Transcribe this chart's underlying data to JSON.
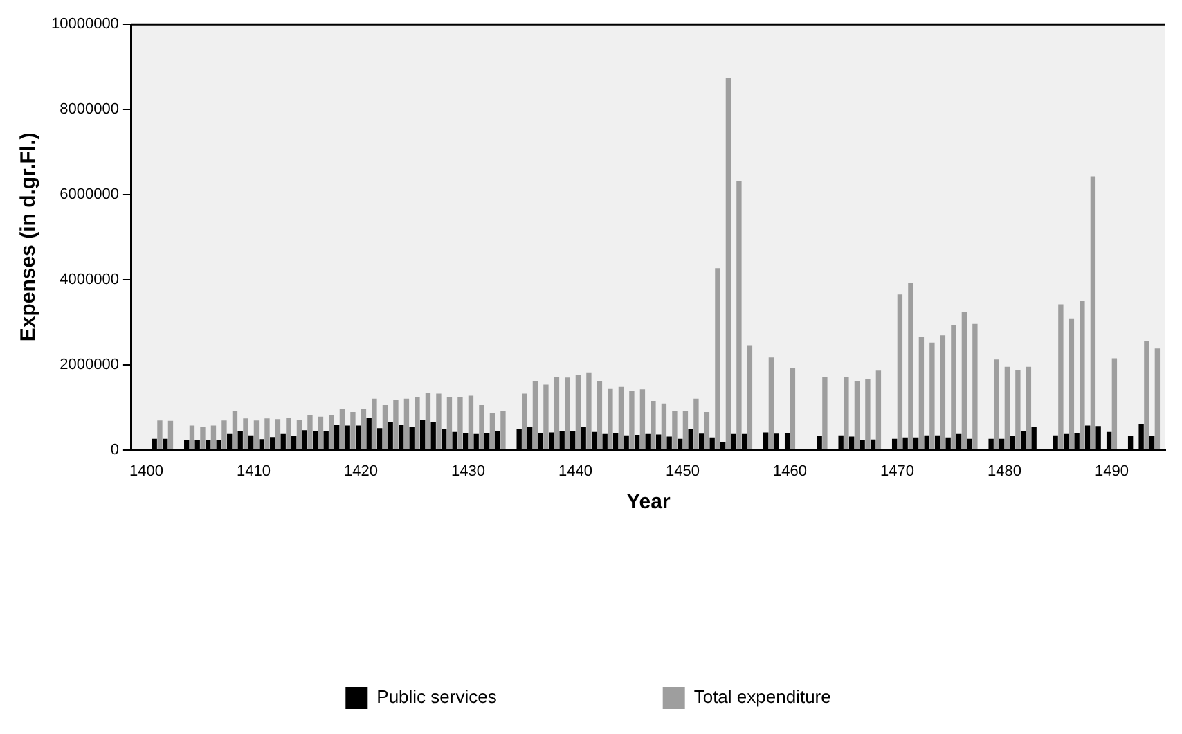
{
  "chart_data": {
    "type": "bar",
    "xlabel": "Year",
    "ylabel": "Expenses (in d.gr.Fl.)",
    "x": [
      1401,
      1402,
      1403,
      1404,
      1405,
      1406,
      1407,
      1408,
      1409,
      1410,
      1411,
      1412,
      1413,
      1414,
      1415,
      1416,
      1417,
      1418,
      1419,
      1420,
      1421,
      1422,
      1423,
      1424,
      1425,
      1426,
      1427,
      1428,
      1429,
      1430,
      1431,
      1432,
      1433,
      1434,
      1435,
      1436,
      1437,
      1438,
      1439,
      1440,
      1441,
      1442,
      1443,
      1444,
      1445,
      1446,
      1447,
      1448,
      1449,
      1450,
      1451,
      1452,
      1453,
      1454,
      1455,
      1456,
      1457,
      1458,
      1459,
      1460,
      1461,
      1462,
      1463,
      1464,
      1465,
      1466,
      1467,
      1468,
      1469,
      1470,
      1471,
      1472,
      1473,
      1474,
      1475,
      1476,
      1477,
      1478,
      1479,
      1480,
      1481,
      1482,
      1483,
      1484,
      1485,
      1486,
      1487,
      1488,
      1489,
      1490,
      1491,
      1492,
      1493,
      1494
    ],
    "series": [
      {
        "name": "Public services",
        "color": "#000000",
        "values": [
          260000,
          260000,
          null,
          220000,
          220000,
          220000,
          230000,
          370000,
          440000,
          340000,
          250000,
          300000,
          370000,
          330000,
          460000,
          440000,
          440000,
          580000,
          570000,
          570000,
          760000,
          510000,
          660000,
          580000,
          530000,
          710000,
          660000,
          480000,
          420000,
          390000,
          370000,
          400000,
          440000,
          null,
          480000,
          540000,
          390000,
          410000,
          450000,
          450000,
          530000,
          420000,
          370000,
          390000,
          340000,
          350000,
          370000,
          360000,
          310000,
          260000,
          480000,
          380000,
          290000,
          190000,
          370000,
          370000,
          null,
          410000,
          380000,
          400000,
          null,
          null,
          320000,
          null,
          340000,
          310000,
          220000,
          240000,
          null,
          260000,
          290000,
          290000,
          340000,
          340000,
          290000,
          370000,
          260000,
          null,
          260000,
          260000,
          330000,
          440000,
          540000,
          null,
          340000,
          370000,
          400000,
          570000,
          560000,
          420000,
          null,
          330000,
          600000,
          330000
        ]
      },
      {
        "name": "Total expenditure",
        "color": "#9e9e9e",
        "values": [
          690000,
          680000,
          null,
          570000,
          540000,
          570000,
          690000,
          910000,
          740000,
          690000,
          740000,
          720000,
          760000,
          710000,
          820000,
          780000,
          820000,
          960000,
          890000,
          960000,
          1200000,
          1050000,
          1180000,
          1200000,
          1240000,
          1340000,
          1320000,
          1230000,
          1240000,
          1270000,
          1050000,
          860000,
          910000,
          null,
          1320000,
          1620000,
          1530000,
          1720000,
          1700000,
          1760000,
          1820000,
          1620000,
          1430000,
          1480000,
          1380000,
          1420000,
          1150000,
          1090000,
          920000,
          910000,
          1200000,
          890000,
          4270000,
          8740000,
          6320000,
          2460000,
          null,
          2170000,
          null,
          1920000,
          null,
          null,
          1720000,
          null,
          1720000,
          1620000,
          1670000,
          1860000,
          null,
          3650000,
          3930000,
          2650000,
          2520000,
          2690000,
          2940000,
          3240000,
          2960000,
          null,
          2120000,
          1950000,
          1870000,
          1950000,
          null,
          null,
          3420000,
          3090000,
          3510000,
          6430000,
          null,
          2150000,
          null,
          null,
          2550000,
          2380000
        ]
      }
    ],
    "xlim": [
      1398.6,
      1495
    ],
    "xticks": [
      1400,
      1410,
      1420,
      1430,
      1440,
      1450,
      1460,
      1470,
      1480,
      1490
    ],
    "ylim": [
      0,
      10000000
    ],
    "yticks": [
      0,
      2000000,
      4000000,
      6000000,
      8000000,
      10000000
    ],
    "grid": false,
    "legend": "bottom"
  }
}
